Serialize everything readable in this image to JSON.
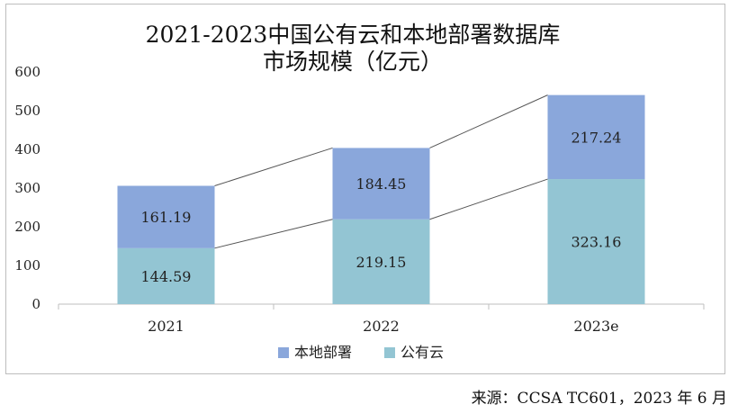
{
  "chart_data": {
    "type": "bar",
    "stacked": true,
    "title": "2021-2023中国公有云和本地部署数据库市场规模（亿元）",
    "title_lines": [
      "2021-2023中国公有云和本地部署数据库",
      "市场规模（亿元）"
    ],
    "categories": [
      "2021",
      "2022",
      "2023e"
    ],
    "series": [
      {
        "name": "公有云",
        "values": [
          144.59,
          219.15,
          323.16
        ],
        "color": "#93c5d3"
      },
      {
        "name": "本地部署",
        "values": [
          161.19,
          184.45,
          217.24
        ],
        "color": "#8aa7db"
      }
    ],
    "value_labels": {
      "公有云": [
        "144.59",
        "219.15",
        "323.16"
      ],
      "本地部署": [
        "161.19",
        "184.45",
        "217.24"
      ]
    },
    "ylim": [
      0,
      600
    ],
    "yticks": [
      "0",
      "100",
      "200",
      "300",
      "400",
      "500",
      "600"
    ],
    "grid": false,
    "connector_lines": true,
    "legend": {
      "position": "bottom",
      "items": [
        "本地部署",
        "公有云"
      ]
    }
  },
  "source_text": "来源：CCSA TC601，2023 年 6 月"
}
